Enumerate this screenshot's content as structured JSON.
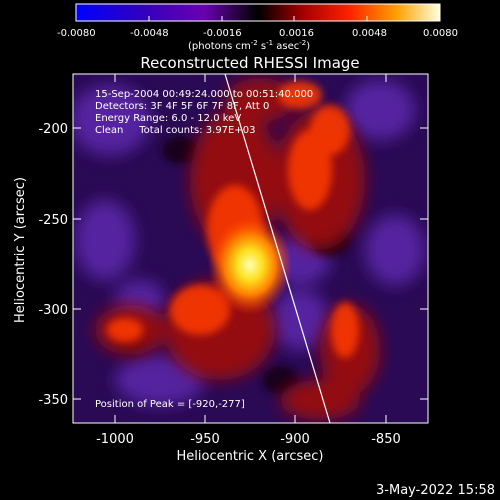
{
  "colorbar": {
    "ticks": [
      "-0.0080",
      "-0.0048",
      "-0.0016",
      "0.0016",
      "0.0048",
      "0.0080"
    ],
    "unit_pre": "(photons cm",
    "unit_sup1": "-2",
    "unit_mid": " s",
    "unit_sup2": "-1",
    "unit_mid2": " asec",
    "unit_sup3": "-2",
    "unit_post": ")"
  },
  "title": "Reconstructed RHESSI Image",
  "annotations": {
    "line1": "15-Sep-2004 00:49:24.000 to 00:51:40.000",
    "line2": "Detectors: 3F 4F 5F 6F 7F 8F, Att 0",
    "line3": "Energy Range: 6.0 - 12.0 keV",
    "line4": "Clean     Total counts: 3.97E+03",
    "peak": "Position of Peak = [-920,-277]"
  },
  "axes": {
    "xlabel": "Heliocentric X (arcsec)",
    "ylabel": "Heliocentric Y (arcsec)",
    "xticks": [
      "-1000",
      "-950",
      "-900",
      "-850"
    ],
    "yticks": [
      "-200",
      "-250",
      "-300",
      "-350"
    ]
  },
  "footer": "3-May-2022 15:58",
  "colors": {
    "background": "#000000",
    "text": "#ffffff",
    "blob_core": "#ffff40",
    "blob_mid": "#ff4000",
    "blob_outer": "#a00000",
    "background_purple": "#5020a0"
  }
}
